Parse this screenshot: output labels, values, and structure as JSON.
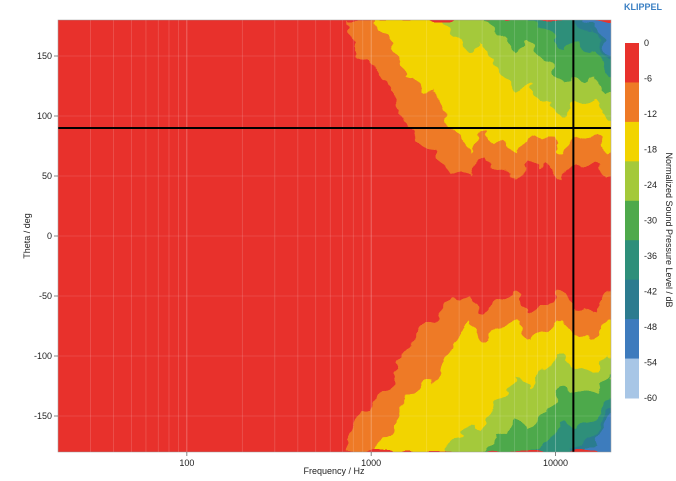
{
  "brand": "KLIPPEL",
  "chart_data": {
    "type": "heatmap",
    "title": "",
    "xlabel": "Frequency / Hz",
    "ylabel": "Theta / deg",
    "colorbar_label": "Normalized Sound Pressure Level / dB",
    "x_scale": "log",
    "xlim": [
      20,
      20000
    ],
    "ylim": [
      -180,
      180
    ],
    "x_ticks": [
      100,
      1000,
      10000
    ],
    "x_tick_labels": [
      "100",
      "1000",
      "10000"
    ],
    "y_ticks": [
      150,
      100,
      50,
      0,
      -50,
      -100,
      -150
    ],
    "y_tick_labels": [
      "150",
      "100",
      "50",
      "0",
      "-50",
      "-100",
      "-150"
    ],
    "colorbar_ticks": [
      0,
      -6,
      -12,
      -18,
      -24,
      -30,
      -36,
      -42,
      -48,
      -54,
      -60
    ],
    "colorbar_tick_labels": [
      "0",
      "-6",
      "-12",
      "-18",
      "-24",
      "-30",
      "-36",
      "-42",
      "-48",
      "-54",
      "-60"
    ],
    "colorbar_levels": [
      {
        "range": [
          -6,
          0
        ],
        "color": "#e8312c"
      },
      {
        "range": [
          -12,
          -6
        ],
        "color": "#ee7a26"
      },
      {
        "range": [
          -18,
          -12
        ],
        "color": "#f2d400"
      },
      {
        "range": [
          -24,
          -18
        ],
        "color": "#a4c93a"
      },
      {
        "range": [
          -30,
          -24
        ],
        "color": "#4ea94b"
      },
      {
        "range": [
          -36,
          -30
        ],
        "color": "#2e8f7a"
      },
      {
        "range": [
          -42,
          -36
        ],
        "color": "#2c7b8f"
      },
      {
        "range": [
          -48,
          -42
        ],
        "color": "#3e7bbd"
      },
      {
        "range": [
          -54,
          -48
        ],
        "color": "#a8c6e6"
      }
    ],
    "cursor_lines": {
      "frequency_hz": 12500,
      "theta_deg": 90
    },
    "regions": {
      "-12_dB_onset_hz": 700,
      "-18_dB_onset_hz": 1000,
      "-24_dB_onset_hz": 2500,
      "-30_dB_onset_hz": 4000,
      "-42_dB_onset_hz": 12000,
      "on_axis_band_deg": [
        -55,
        55
      ]
    },
    "grid": true
  }
}
